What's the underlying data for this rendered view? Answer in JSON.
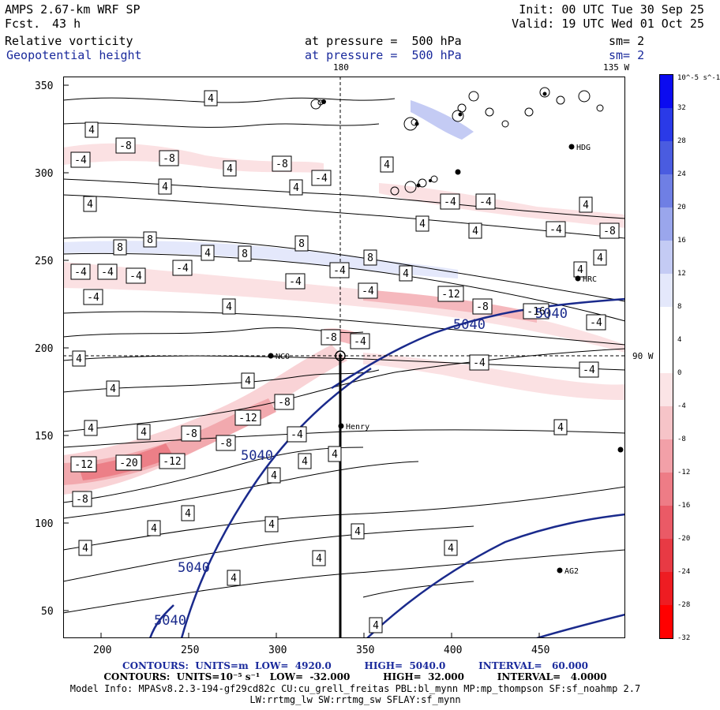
{
  "header": {
    "model": "AMPS 2.67-km WRF SP",
    "forecast_label": "Fcst.",
    "forecast_value": "43 h",
    "field1": "Relative vorticity",
    "field2": "Geopotential height",
    "init": "Init: 00 UTC Tue 30 Sep 25",
    "valid": "Valid: 19 UTC Wed 01 Oct 25",
    "level1": "at pressure =  500 hPa",
    "level2": "at pressure =  500 hPa",
    "smooth1": "sm= 2",
    "smooth2": "sm= 2"
  },
  "map": {
    "lon_top_label": "180",
    "lon_top_right_label": "135 W",
    "lon_right_label": "90 W",
    "x_ticks": [
      "200",
      "250",
      "300",
      "350",
      "400",
      "450"
    ],
    "y_ticks": [
      "50",
      "100",
      "150",
      "200",
      "250",
      "300",
      "350"
    ],
    "stations": [
      "NCO",
      "Henry",
      "HDG",
      "HRC",
      "AG2"
    ],
    "height_contours": [
      "5040",
      "5040",
      "5040",
      "5040",
      "5040"
    ],
    "vort_labels": [
      "4",
      "-4",
      "8",
      "-8",
      "-12",
      "-20",
      "-16"
    ]
  },
  "colorbar": {
    "units": "10^-5 s^-1",
    "ticks": [
      "32",
      "28",
      "24",
      "20",
      "16",
      "12",
      "8",
      "4",
      "0",
      "-4",
      "-8",
      "-12",
      "-16",
      "-20",
      "-24",
      "-28",
      "-32"
    ],
    "colors": [
      "#0b0bf0",
      "#2a3ae8",
      "#4a5ce0",
      "#6f7fe4",
      "#9aa6ec",
      "#c4cbf4",
      "#e4e8fb",
      "#ffffff",
      "#ffffff",
      "#fbe4e6",
      "#f6c4c8",
      "#f2a0a8",
      "#ee7c86",
      "#ea5a66",
      "#e83a44",
      "#ee1c22",
      "#ff0000"
    ]
  },
  "footer": {
    "line1": "CONTOURS:  UNITS=m  LOW=  4920.0          HIGH=  5040.0          INTERVAL=   60.000",
    "line2": "CONTOURS:  UNITS=10⁻⁵ s⁻¹   LOW=  -32.000          HIGH=  32.000          INTERVAL=   4.0000",
    "line3": "Model Info: MPASv8.2.3-194-gf29cd82c CU:cu_grell_freitas PBL:bl_mynn MP:mp_thompson SF:sf_noahmp 2.7",
    "line4": "LW:rrtmg_lw SW:rrtmg_sw SFLAY:sf_mynn"
  }
}
